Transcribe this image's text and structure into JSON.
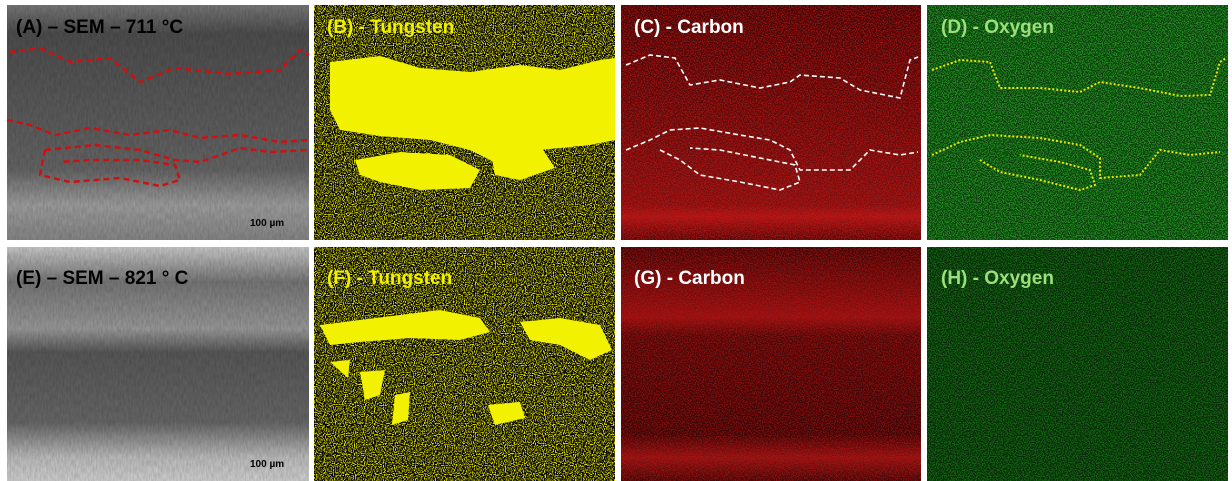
{
  "panels": [
    {
      "label": "(A) – SEM – 711 °C",
      "scale_bar": "100 µm"
    },
    {
      "label": "(B) - Tungsten"
    },
    {
      "label": "(C) - Carbon"
    },
    {
      "label": "(D) - Oxygen"
    },
    {
      "label": "(E) – SEM – 821 ° C",
      "scale_bar": "100 µm"
    },
    {
      "label": "(F) - Tungsten"
    },
    {
      "label": "(G) - Carbon"
    },
    {
      "label": "(H) - Oxygen"
    }
  ]
}
